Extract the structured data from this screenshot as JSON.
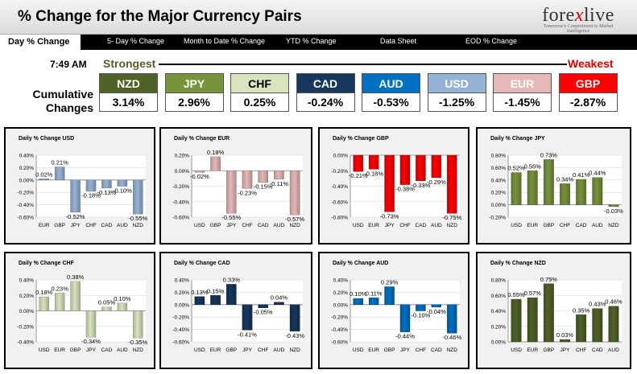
{
  "header": {
    "title": "% Change for the Major Currency Pairs",
    "logo_main": "forexlive",
    "logo_sub": "Tomorrow's Commitment to Market Intelligence"
  },
  "nav": {
    "items": [
      "Day % Change",
      "5- Day % Change",
      "Month to Date % Change",
      "YTD % Change",
      "Data Sheet",
      "EOD % Change"
    ]
  },
  "summary": {
    "time": "7:49 AM",
    "strongest": "Strongest",
    "weakest": "Weakest",
    "cumulative_label_1": "Cumulative",
    "cumulative_label_2": "Changes",
    "currencies": [
      {
        "code": "NZD",
        "value": "3.14%",
        "color": "#4f6228",
        "text_color": "#ffffff"
      },
      {
        "code": "JPY",
        "value": "2.96%",
        "color": "#77933c",
        "text_color": "#ffffff"
      },
      {
        "code": "CHF",
        "value": "0.25%",
        "color": "#d7e4bd",
        "text_color": "#000000"
      },
      {
        "code": "CAD",
        "value": "-0.24%",
        "color": "#17375e",
        "text_color": "#ffffff"
      },
      {
        "code": "AUD",
        "value": "-0.53%",
        "color": "#0070c0",
        "text_color": "#ffffff"
      },
      {
        "code": "USD",
        "value": "-1.25%",
        "color": "#95b3d7",
        "text_color": "#ffffff"
      },
      {
        "code": "EUR",
        "value": "-1.45%",
        "color": "#e6b9b8",
        "text_color": "#ffffff"
      },
      {
        "code": "GBP",
        "value": "-2.87%",
        "color": "#ff0000",
        "text_color": "#ffffff"
      }
    ]
  },
  "chart_data": [
    {
      "type": "bar",
      "title": "Daily % Change USD",
      "color": "#95b3d7",
      "categories": [
        "EUR",
        "GBP",
        "JPY",
        "CHF",
        "CAD",
        "AUD",
        "NZD"
      ],
      "values": [
        0.02,
        0.21,
        -0.52,
        -0.18,
        -0.13,
        -0.1,
        -0.55
      ],
      "labels": [
        "0.02%",
        "0.21%",
        "-0.52%",
        "-0.18%",
        "-0.13%",
        "-0.10%",
        "-0.55%"
      ],
      "ylim": [
        -0.6,
        0.4
      ],
      "ticks": [
        "0.40%",
        "0.20%",
        "0.00%",
        "-0.20%",
        "-0.40%",
        "-0.60%"
      ]
    },
    {
      "type": "bar",
      "title": "Daily % Change EUR",
      "color": "#e6b9b8",
      "categories": [
        "USD",
        "GBP",
        "JPY",
        "CHF",
        "CAD",
        "AUD",
        "NZD"
      ],
      "values": [
        -0.02,
        0.18,
        -0.55,
        -0.23,
        -0.15,
        -0.11,
        -0.57
      ],
      "labels": [
        "-0.02%",
        "0.18%",
        "-0.55%",
        "-0.23%",
        "-0.15%",
        "-0.11%",
        "-0.57%"
      ],
      "ylim": [
        -0.6,
        0.2
      ],
      "ticks": [
        "0.20%",
        "0.00%",
        "-0.20%",
        "-0.40%",
        "-0.60%"
      ]
    },
    {
      "type": "bar",
      "title": "Daily % Change GBP",
      "color": "#ff0000",
      "categories": [
        "USD",
        "EUR",
        "JPY",
        "CHF",
        "CAD",
        "AUD",
        "NZD"
      ],
      "values": [
        -0.21,
        -0.18,
        -0.73,
        -0.38,
        -0.33,
        -0.29,
        -0.75
      ],
      "labels": [
        "-0.21%",
        "-0.18%",
        "-0.73%",
        "-0.38%",
        "-0.33%",
        "-0.29%",
        "-0.75%"
      ],
      "ylim": [
        -0.8,
        0.0
      ],
      "ticks": [
        "0.00%",
        "-0.20%",
        "-0.40%",
        "-0.60%",
        "-0.80%"
      ]
    },
    {
      "type": "bar",
      "title": "Daily % Change JPY",
      "color": "#77933c",
      "categories": [
        "USD",
        "EUR",
        "GBP",
        "CHF",
        "CAD",
        "AUD",
        "NZD"
      ],
      "values": [
        0.52,
        0.55,
        0.73,
        0.34,
        0.41,
        0.44,
        -0.03
      ],
      "labels": [
        "0.52%",
        "0.55%",
        "0.73%",
        "0.34%",
        "0.41%",
        "0.44%",
        "-0.03%"
      ],
      "ylim": [
        -0.2,
        0.8
      ],
      "ticks": [
        "0.80%",
        "0.60%",
        "0.40%",
        "0.20%",
        "0.00%",
        "-0.20%"
      ]
    },
    {
      "type": "bar",
      "title": "Daily % Change CHF",
      "color": "#d7e4bd",
      "categories": [
        "USD",
        "EUR",
        "GBP",
        "JPY",
        "CAD",
        "AUD",
        "NZD"
      ],
      "values": [
        0.18,
        0.23,
        0.38,
        -0.34,
        0.05,
        0.1,
        -0.35
      ],
      "labels": [
        "0.18%",
        "0.23%",
        "0.38%",
        "-0.34%",
        "0.05%",
        "0.10%",
        "-0.35%"
      ],
      "ylim": [
        -0.4,
        0.4
      ],
      "ticks": [
        "0.40%",
        "0.20%",
        "0.00%",
        "-0.20%",
        "-0.40%"
      ]
    },
    {
      "type": "bar",
      "title": "Daily % Change CAD",
      "color": "#17375e",
      "categories": [
        "USD",
        "EUR",
        "GBP",
        "JPY",
        "CHF",
        "AUD",
        "NZD"
      ],
      "values": [
        0.13,
        0.15,
        0.33,
        -0.41,
        -0.05,
        0.04,
        -0.43
      ],
      "labels": [
        "0.13%",
        "0.15%",
        "0.33%",
        "-0.41%",
        "-0.05%",
        "0.04%",
        "-0.43%"
      ],
      "ylim": [
        -0.6,
        0.4
      ],
      "ticks": [
        "0.40%",
        "0.20%",
        "0.00%",
        "-0.20%",
        "-0.40%",
        "-0.60%"
      ]
    },
    {
      "type": "bar",
      "title": "Daily % Change AUD",
      "color": "#0070c0",
      "categories": [
        "USD",
        "EUR",
        "GBP",
        "JPY",
        "CHF",
        "CAD",
        "NZD"
      ],
      "values": [
        0.1,
        0.11,
        0.29,
        -0.44,
        -0.1,
        -0.04,
        -0.46
      ],
      "labels": [
        "0.10%",
        "0.11%",
        "0.29%",
        "-0.44%",
        "-0.10%",
        "-0.04%",
        "-0.46%"
      ],
      "ylim": [
        -0.6,
        0.4
      ],
      "ticks": [
        "0.40%",
        "0.20%",
        "0.00%",
        "-0.20%",
        "-0.40%",
        "-0.60%"
      ]
    },
    {
      "type": "bar",
      "title": "Daily % Change NZD",
      "color": "#4f6228",
      "categories": [
        "USD",
        "EUR",
        "GBP",
        "JPY",
        "CHF",
        "CAD",
        "AUD"
      ],
      "values": [
        0.55,
        0.57,
        0.75,
        0.03,
        0.35,
        0.43,
        0.46
      ],
      "labels": [
        "0.55%",
        "0.57%",
        "0.75%",
        "0.03%",
        "0.35%",
        "0.43%",
        "0.46%"
      ],
      "ylim": [
        0.0,
        0.8
      ],
      "ticks": [
        "0.80%",
        "0.60%",
        "0.40%",
        "0.20%",
        "0.00%"
      ]
    }
  ]
}
